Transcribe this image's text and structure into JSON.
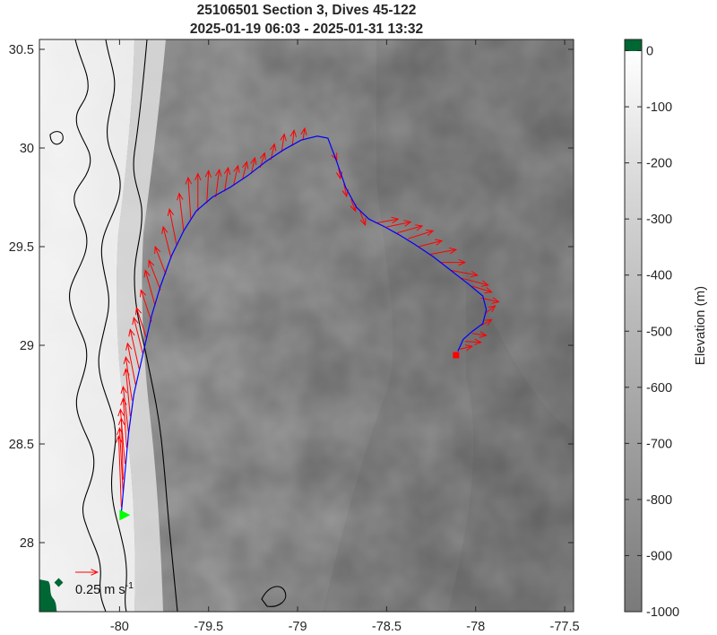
{
  "figure": {
    "title_line1": "25106501 Section 3, Dives 45-122",
    "title_line2": "2025-01-19 06:03 - 2025-01-31 13:32",
    "scale_label": "0.25 m s",
    "scale_label_exp": "-1",
    "colorbar_label": "Elevation (m)"
  },
  "colors": {
    "arrow": "#ff0000",
    "track": "#0000ff",
    "start_marker": "#00ff00",
    "end_marker": "#ff0000",
    "land": "#006633",
    "contour": "#000000",
    "bathy_deep": "#7a7a7a",
    "bathy_shallow": "#ffffff"
  },
  "chart_data": {
    "type": "map",
    "x_ticks": [
      -80,
      -79.5,
      -79,
      -78.5,
      -78,
      -77.5
    ],
    "x_tick_labels": [
      "-80",
      "-79.5",
      "-79",
      "-78.5",
      "-78",
      "-77.5"
    ],
    "y_ticks": [
      28,
      28.5,
      29,
      29.5,
      30,
      30.5
    ],
    "y_tick_labels": [
      "28",
      "28.5",
      "29",
      "29.5",
      "30",
      "30.5"
    ],
    "xlim": [
      -80.45,
      -77.45
    ],
    "ylim": [
      27.65,
      30.55
    ],
    "colorbar": {
      "ticks": [
        0,
        -100,
        -200,
        -300,
        -400,
        -500,
        -600,
        -700,
        -800,
        -900,
        -1000
      ],
      "tick_labels": [
        "0",
        "-100",
        "-200",
        "-300",
        "-400",
        "-500",
        "-600",
        "-700",
        "-800",
        "-900",
        "-1000"
      ],
      "range": [
        -1000,
        20
      ]
    },
    "track": [
      [
        -79.99,
        28.15
      ],
      [
        -79.97,
        28.35
      ],
      [
        -79.95,
        28.55
      ],
      [
        -79.92,
        28.75
      ],
      [
        -79.87,
        28.95
      ],
      [
        -79.82,
        29.15
      ],
      [
        -79.77,
        29.3
      ],
      [
        -79.71,
        29.45
      ],
      [
        -79.64,
        29.58
      ],
      [
        -79.57,
        29.68
      ],
      [
        -79.48,
        29.75
      ],
      [
        -79.38,
        29.8
      ],
      [
        -79.28,
        29.86
      ],
      [
        -79.18,
        29.93
      ],
      [
        -79.08,
        29.99
      ],
      [
        -78.98,
        30.04
      ],
      [
        -78.89,
        30.06
      ],
      [
        -78.83,
        30.05
      ],
      [
        -78.78,
        29.93
      ],
      [
        -78.73,
        29.8
      ],
      [
        -78.67,
        29.7
      ],
      [
        -78.6,
        29.64
      ],
      [
        -78.51,
        29.6
      ],
      [
        -78.43,
        29.56
      ],
      [
        -78.34,
        29.51
      ],
      [
        -78.24,
        29.45
      ],
      [
        -78.14,
        29.38
      ],
      [
        -78.04,
        29.31
      ],
      [
        -77.96,
        29.25
      ],
      [
        -77.94,
        29.18
      ],
      [
        -77.96,
        29.11
      ],
      [
        -78.02,
        29.07
      ],
      [
        -78.07,
        29.03
      ],
      [
        -78.1,
        28.97
      ]
    ],
    "start": [
      -79.98,
      28.14
    ],
    "end": [
      -78.11,
      28.95
    ],
    "scale_arrow": {
      "u": 0.25,
      "v": 0
    },
    "currents": [
      {
        "x": -79.99,
        "y": 28.18,
        "u": -0.03,
        "v": 0.72
      },
      {
        "x": -79.98,
        "y": 28.25,
        "u": -0.04,
        "v": 0.66
      },
      {
        "x": -79.98,
        "y": 28.32,
        "u": -0.02,
        "v": 0.62
      },
      {
        "x": -79.97,
        "y": 28.4,
        "u": -0.05,
        "v": 0.55
      },
      {
        "x": -79.96,
        "y": 28.48,
        "u": -0.04,
        "v": 0.5
      },
      {
        "x": -79.95,
        "y": 28.56,
        "u": -0.06,
        "v": 0.46
      },
      {
        "x": -79.94,
        "y": 28.64,
        "u": -0.05,
        "v": 0.48
      },
      {
        "x": -79.93,
        "y": 28.72,
        "u": -0.07,
        "v": 0.44
      },
      {
        "x": -79.91,
        "y": 28.8,
        "u": -0.09,
        "v": 0.42
      },
      {
        "x": -79.89,
        "y": 28.88,
        "u": -0.1,
        "v": 0.4
      },
      {
        "x": -79.87,
        "y": 28.96,
        "u": -0.1,
        "v": 0.36
      },
      {
        "x": -79.85,
        "y": 29.04,
        "u": -0.11,
        "v": 0.3
      },
      {
        "x": -79.82,
        "y": 29.12,
        "u": -0.12,
        "v": 0.32
      },
      {
        "x": -79.8,
        "y": 29.2,
        "u": -0.11,
        "v": 0.36
      },
      {
        "x": -79.77,
        "y": 29.28,
        "u": -0.13,
        "v": 0.3
      },
      {
        "x": -79.74,
        "y": 29.36,
        "u": -0.12,
        "v": 0.28
      },
      {
        "x": -79.71,
        "y": 29.44,
        "u": -0.09,
        "v": 0.32
      },
      {
        "x": -79.68,
        "y": 29.51,
        "u": -0.08,
        "v": 0.36
      },
      {
        "x": -79.64,
        "y": 29.58,
        "u": -0.05,
        "v": 0.38
      },
      {
        "x": -79.6,
        "y": 29.64,
        "u": -0.03,
        "v": 0.42
      },
      {
        "x": -79.56,
        "y": 29.68,
        "u": 0.0,
        "v": 0.38
      },
      {
        "x": -79.51,
        "y": 29.72,
        "u": 0.02,
        "v": 0.33
      },
      {
        "x": -79.46,
        "y": 29.75,
        "u": 0.04,
        "v": 0.28
      },
      {
        "x": -79.41,
        "y": 29.78,
        "u": 0.04,
        "v": 0.24
      },
      {
        "x": -79.36,
        "y": 29.81,
        "u": 0.05,
        "v": 0.2
      },
      {
        "x": -79.31,
        "y": 29.84,
        "u": 0.05,
        "v": 0.18
      },
      {
        "x": -79.26,
        "y": 29.87,
        "u": 0.04,
        "v": 0.16
      },
      {
        "x": -79.21,
        "y": 29.9,
        "u": 0.05,
        "v": 0.15
      },
      {
        "x": -79.15,
        "y": 29.94,
        "u": 0.04,
        "v": 0.16
      },
      {
        "x": -79.09,
        "y": 29.98,
        "u": 0.03,
        "v": 0.18
      },
      {
        "x": -79.03,
        "y": 30.01,
        "u": 0.02,
        "v": 0.16
      },
      {
        "x": -78.97,
        "y": 30.04,
        "u": 0.02,
        "v": 0.12
      },
      {
        "x": -78.8,
        "y": 29.98,
        "u": 0.04,
        "v": -0.08
      },
      {
        "x": -78.77,
        "y": 29.9,
        "u": 0.02,
        "v": -0.11
      },
      {
        "x": -78.74,
        "y": 29.82,
        "u": 0.03,
        "v": -0.13
      },
      {
        "x": -78.7,
        "y": 29.74,
        "u": 0.05,
        "v": -0.12
      },
      {
        "x": -78.65,
        "y": 29.68,
        "u": 0.06,
        "v": -0.14
      },
      {
        "x": -78.56,
        "y": 29.62,
        "u": 0.25,
        "v": 0.04
      },
      {
        "x": -78.5,
        "y": 29.6,
        "u": 0.27,
        "v": 0.05
      },
      {
        "x": -78.44,
        "y": 29.57,
        "u": 0.28,
        "v": 0.07
      },
      {
        "x": -78.38,
        "y": 29.54,
        "u": 0.28,
        "v": 0.08
      },
      {
        "x": -78.32,
        "y": 29.5,
        "u": 0.26,
        "v": 0.06
      },
      {
        "x": -78.26,
        "y": 29.46,
        "u": 0.3,
        "v": 0.05
      },
      {
        "x": -78.2,
        "y": 29.42,
        "u": 0.28,
        "v": 0.0
      },
      {
        "x": -78.14,
        "y": 29.38,
        "u": 0.3,
        "v": -0.05
      },
      {
        "x": -78.08,
        "y": 29.34,
        "u": 0.3,
        "v": -0.07
      },
      {
        "x": -78.02,
        "y": 29.3,
        "u": 0.22,
        "v": -0.06
      },
      {
        "x": -77.97,
        "y": 29.24,
        "u": 0.2,
        "v": -0.04
      },
      {
        "x": -77.95,
        "y": 29.16,
        "u": 0.12,
        "v": 0.08
      },
      {
        "x": -77.97,
        "y": 29.1,
        "u": 0.12,
        "v": 0.06
      },
      {
        "x": -78.02,
        "y": 29.06,
        "u": 0.16,
        "v": -0.02
      },
      {
        "x": -78.06,
        "y": 29.02,
        "u": 0.18,
        "v": -0.01
      },
      {
        "x": -78.09,
        "y": 28.98,
        "u": 0.14,
        "v": 0.03
      }
    ]
  }
}
